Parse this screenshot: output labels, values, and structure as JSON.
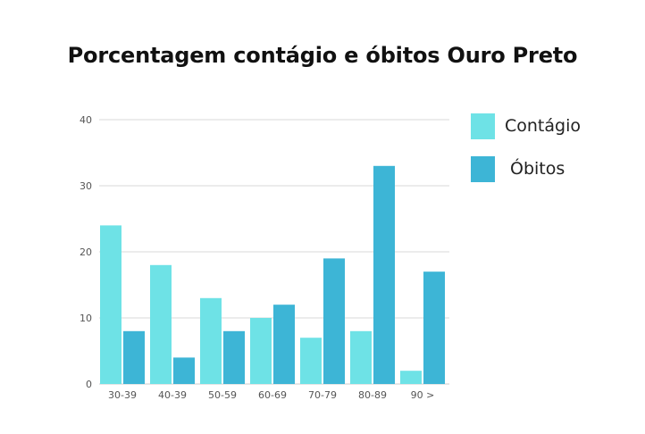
{
  "chart_data": {
    "type": "bar",
    "title": "Porcentagem contágio e óbitos Ouro Preto",
    "categories": [
      "30-39",
      "40-39",
      "50-59",
      "60-69",
      "70-79",
      "80-89",
      "90 >"
    ],
    "series": [
      {
        "name": "Contágio",
        "color": "#6ee2e6",
        "values": [
          24,
          18,
          13,
          10,
          7,
          8,
          2
        ]
      },
      {
        "name": "Óbitos",
        "color": "#3db5d6",
        "values": [
          8,
          4,
          8,
          12,
          19,
          33,
          17
        ]
      }
    ],
    "yticks": [
      0,
      10,
      20,
      30,
      40
    ],
    "ylim": [
      0,
      40
    ],
    "grid": true,
    "legend_position": "right",
    "colors": {
      "grid": "#d9d9d9",
      "axis": "#cccccc"
    }
  }
}
